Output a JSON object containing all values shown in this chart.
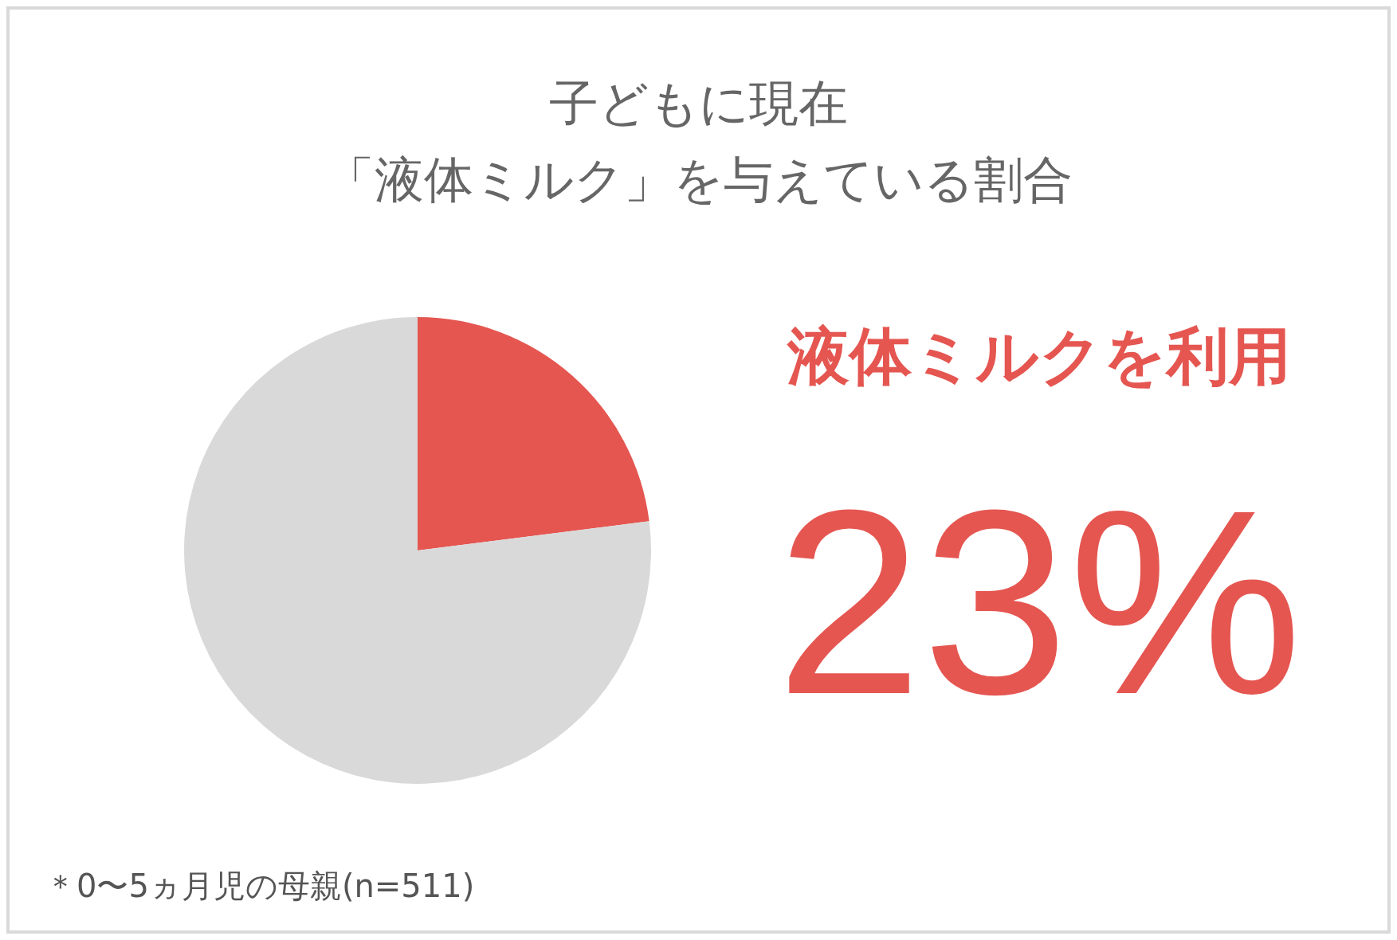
{
  "chart_data": {
    "type": "pie",
    "title": "子どもに現在",
    "subtitle": "「液体ミルク」を与えている割合",
    "categories": [
      "液体ミルクを利用",
      null
    ],
    "values": [
      23,
      77
    ],
    "colors": [
      "#e55651",
      "#d9d9d9"
    ],
    "value_labels": [
      "23%",
      null
    ],
    "annotations": [
      "＊0〜5ヵ月児の母親(n=511)"
    ]
  }
}
